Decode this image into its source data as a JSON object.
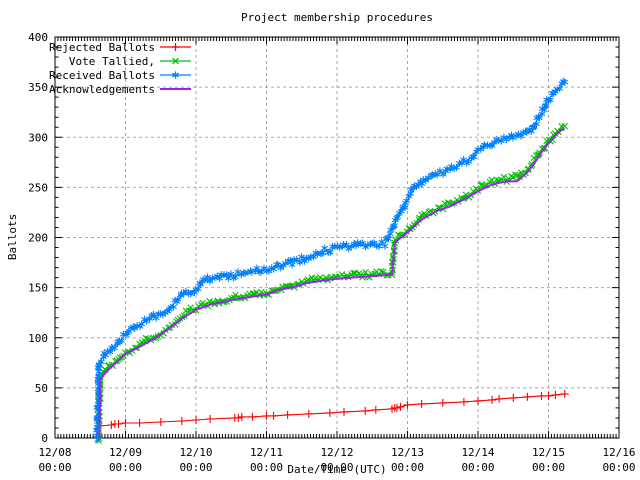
{
  "chart_data": {
    "type": "line",
    "title": "Project membership procedures",
    "xlabel": "Date/Time (UTC)",
    "ylabel": "Ballots",
    "ylim": [
      0,
      400
    ],
    "y_tick_step": 50,
    "y_ticks": [
      0,
      50,
      100,
      150,
      200,
      250,
      300,
      350,
      400
    ],
    "x_unit": "days since 12/08 00:00 UTC",
    "x_ticks": [
      {
        "date": "12/08",
        "time": "00:00",
        "day": 0
      },
      {
        "date": "12/09",
        "time": "00:00",
        "day": 1
      },
      {
        "date": "12/10",
        "time": "00:00",
        "day": 2
      },
      {
        "date": "12/11",
        "time": "00:00",
        "day": 3
      },
      {
        "date": "12/12",
        "time": "00:00",
        "day": 4
      },
      {
        "date": "12/13",
        "time": "00:00",
        "day": 5
      },
      {
        "date": "12/14",
        "time": "00:00",
        "day": 6
      },
      {
        "date": "12/15",
        "time": "00:00",
        "day": 7
      },
      {
        "date": "12/16",
        "time": "00:00",
        "day": 8
      }
    ],
    "grid": true,
    "grid_color": "#a8a8a8",
    "legend_position": "top-left",
    "legend_order": [
      "Rejected Ballots",
      "Vote Tallied,",
      "Received Ballots",
      "Acknowledgements"
    ],
    "series": [
      {
        "name": "Rejected Ballots",
        "color": "#ff0000",
        "marker": "plus",
        "dense_markers": false,
        "points": [
          [
            0.63,
            12
          ],
          [
            0.8,
            13
          ],
          [
            0.85,
            14
          ],
          [
            0.9,
            14
          ],
          [
            1.0,
            15
          ],
          [
            1.2,
            15
          ],
          [
            1.5,
            16
          ],
          [
            1.8,
            17
          ],
          [
            2.0,
            18
          ],
          [
            2.2,
            19
          ],
          [
            2.55,
            20
          ],
          [
            2.6,
            20
          ],
          [
            2.65,
            21
          ],
          [
            2.8,
            21
          ],
          [
            3.0,
            22
          ],
          [
            3.1,
            22
          ],
          [
            3.3,
            23
          ],
          [
            3.6,
            24
          ],
          [
            3.9,
            25
          ],
          [
            4.1,
            26
          ],
          [
            4.4,
            27
          ],
          [
            4.55,
            28
          ],
          [
            4.78,
            29
          ],
          [
            4.82,
            30
          ],
          [
            4.85,
            30
          ],
          [
            4.9,
            31
          ],
          [
            5.0,
            33
          ],
          [
            5.2,
            34
          ],
          [
            5.5,
            35
          ],
          [
            5.8,
            36
          ],
          [
            6.0,
            37
          ],
          [
            6.2,
            38
          ],
          [
            6.3,
            39
          ],
          [
            6.5,
            40
          ],
          [
            6.7,
            41
          ],
          [
            6.9,
            42
          ],
          [
            7.0,
            42
          ],
          [
            7.1,
            43
          ],
          [
            7.23,
            44
          ]
        ]
      },
      {
        "name": "Vote Tallied,",
        "color": "#00c000",
        "marker": "cross",
        "dense_markers": true,
        "points": [
          [
            0.62,
            0
          ],
          [
            0.63,
            30
          ],
          [
            0.64,
            60
          ],
          [
            0.65,
            62
          ],
          [
            0.7,
            66
          ],
          [
            0.8,
            73
          ],
          [
            0.9,
            79
          ],
          [
            1.0,
            85
          ],
          [
            1.1,
            89
          ],
          [
            1.2,
            93
          ],
          [
            1.3,
            97
          ],
          [
            1.4,
            101
          ],
          [
            1.5,
            105
          ],
          [
            1.6,
            110
          ],
          [
            1.7,
            115
          ],
          [
            1.8,
            121
          ],
          [
            1.9,
            126
          ],
          [
            2.0,
            130
          ],
          [
            2.1,
            133
          ],
          [
            2.2,
            135
          ],
          [
            2.3,
            136
          ],
          [
            2.4,
            138
          ],
          [
            2.5,
            140
          ],
          [
            2.6,
            141
          ],
          [
            2.7,
            142
          ],
          [
            2.8,
            143
          ],
          [
            2.9,
            144
          ],
          [
            3.0,
            145
          ],
          [
            3.1,
            147
          ],
          [
            3.2,
            150
          ],
          [
            3.3,
            152
          ],
          [
            3.4,
            153
          ],
          [
            3.5,
            155
          ],
          [
            3.6,
            157
          ],
          [
            3.7,
            158
          ],
          [
            3.8,
            159
          ],
          [
            3.9,
            160
          ],
          [
            4.0,
            161
          ],
          [
            4.1,
            162
          ],
          [
            4.2,
            162
          ],
          [
            4.3,
            163
          ],
          [
            4.4,
            163
          ],
          [
            4.5,
            163
          ],
          [
            4.6,
            164
          ],
          [
            4.7,
            164
          ],
          [
            4.78,
            165
          ],
          [
            4.8,
            182
          ],
          [
            4.82,
            197
          ],
          [
            4.9,
            202
          ],
          [
            5.0,
            207
          ],
          [
            5.1,
            214
          ],
          [
            5.2,
            220
          ],
          [
            5.3,
            225
          ],
          [
            5.4,
            228
          ],
          [
            5.46,
            230
          ],
          [
            5.6,
            233
          ],
          [
            5.7,
            236
          ],
          [
            5.8,
            240
          ],
          [
            5.9,
            244
          ],
          [
            6.0,
            248
          ],
          [
            6.1,
            252
          ],
          [
            6.2,
            255
          ],
          [
            6.3,
            257
          ],
          [
            6.4,
            258
          ],
          [
            6.5,
            259
          ],
          [
            6.6,
            262
          ],
          [
            6.7,
            268
          ],
          [
            6.8,
            277
          ],
          [
            6.9,
            288
          ],
          [
            7.0,
            296
          ],
          [
            7.1,
            304
          ],
          [
            7.18,
            309
          ],
          [
            7.23,
            311
          ]
        ]
      },
      {
        "name": "Received Ballots",
        "color": "#0080ff",
        "marker": "asterisk",
        "dense_markers": true,
        "points": [
          [
            0.596,
            0
          ],
          [
            0.6,
            10
          ],
          [
            0.61,
            40
          ],
          [
            0.62,
            75
          ],
          [
            0.65,
            78
          ],
          [
            0.7,
            82
          ],
          [
            0.8,
            88
          ],
          [
            0.9,
            95
          ],
          [
            1.0,
            103
          ],
          [
            1.1,
            109
          ],
          [
            1.2,
            113
          ],
          [
            1.3,
            118
          ],
          [
            1.4,
            121
          ],
          [
            1.5,
            124
          ],
          [
            1.6,
            129
          ],
          [
            1.7,
            135
          ],
          [
            1.8,
            142
          ],
          [
            1.9,
            146
          ],
          [
            2.0,
            148
          ],
          [
            2.05,
            152
          ],
          [
            2.1,
            156
          ],
          [
            2.2,
            159
          ],
          [
            2.3,
            160
          ],
          [
            2.4,
            161
          ],
          [
            2.5,
            162
          ],
          [
            2.6,
            163
          ],
          [
            2.7,
            165
          ],
          [
            2.8,
            166
          ],
          [
            2.9,
            167
          ],
          [
            3.0,
            168
          ],
          [
            3.1,
            170
          ],
          [
            3.2,
            172
          ],
          [
            3.3,
            174
          ],
          [
            3.4,
            176
          ],
          [
            3.5,
            178
          ],
          [
            3.6,
            181
          ],
          [
            3.7,
            184
          ],
          [
            3.8,
            186
          ],
          [
            3.9,
            188
          ],
          [
            4.0,
            190
          ],
          [
            4.1,
            191
          ],
          [
            4.2,
            191
          ],
          [
            4.3,
            192
          ],
          [
            4.4,
            192
          ],
          [
            4.5,
            192
          ],
          [
            4.6,
            193
          ],
          [
            4.68,
            194
          ],
          [
            4.72,
            199
          ],
          [
            4.78,
            208
          ],
          [
            4.85,
            218
          ],
          [
            4.92,
            228
          ],
          [
            5.0,
            237
          ],
          [
            5.06,
            245
          ],
          [
            5.12,
            251
          ],
          [
            5.2,
            255
          ],
          [
            5.3,
            258
          ],
          [
            5.4,
            261
          ],
          [
            5.46,
            264
          ],
          [
            5.6,
            268
          ],
          [
            5.7,
            271
          ],
          [
            5.8,
            275
          ],
          [
            5.9,
            280
          ],
          [
            6.0,
            286
          ],
          [
            6.1,
            291
          ],
          [
            6.2,
            294
          ],
          [
            6.3,
            297
          ],
          [
            6.4,
            300
          ],
          [
            6.5,
            301
          ],
          [
            6.6,
            302
          ],
          [
            6.7,
            304
          ],
          [
            6.75,
            307
          ],
          [
            6.8,
            313
          ],
          [
            6.9,
            324
          ],
          [
            7.0,
            337
          ],
          [
            7.1,
            346
          ],
          [
            7.18,
            352
          ],
          [
            7.23,
            355
          ]
        ]
      },
      {
        "name": "Acknowledgements",
        "color": "#a020f0",
        "marker": "none",
        "dense_markers": false,
        "points": [
          [
            0.63,
            0
          ],
          [
            0.64,
            58
          ],
          [
            0.7,
            64
          ],
          [
            0.8,
            71
          ],
          [
            0.9,
            77
          ],
          [
            1.0,
            84
          ],
          [
            1.2,
            91
          ],
          [
            1.4,
            99
          ],
          [
            1.6,
            108
          ],
          [
            1.8,
            119
          ],
          [
            2.0,
            128
          ],
          [
            2.2,
            133
          ],
          [
            2.4,
            136
          ],
          [
            2.6,
            139
          ],
          [
            2.8,
            141
          ],
          [
            3.0,
            143
          ],
          [
            3.2,
            148
          ],
          [
            3.4,
            151
          ],
          [
            3.6,
            155
          ],
          [
            3.8,
            157
          ],
          [
            4.0,
            159
          ],
          [
            4.2,
            160
          ],
          [
            4.4,
            161
          ],
          [
            4.6,
            162
          ],
          [
            4.78,
            163
          ],
          [
            4.82,
            195
          ],
          [
            5.0,
            205
          ],
          [
            5.2,
            218
          ],
          [
            5.4,
            226
          ],
          [
            5.6,
            231
          ],
          [
            5.8,
            238
          ],
          [
            6.0,
            246
          ],
          [
            6.2,
            253
          ],
          [
            6.4,
            256
          ],
          [
            6.55,
            256
          ],
          [
            6.7,
            265
          ],
          [
            6.8,
            274
          ],
          [
            6.9,
            285
          ],
          [
            7.0,
            294
          ],
          [
            7.1,
            302
          ],
          [
            7.18,
            307
          ],
          [
            7.23,
            308
          ]
        ]
      }
    ]
  }
}
